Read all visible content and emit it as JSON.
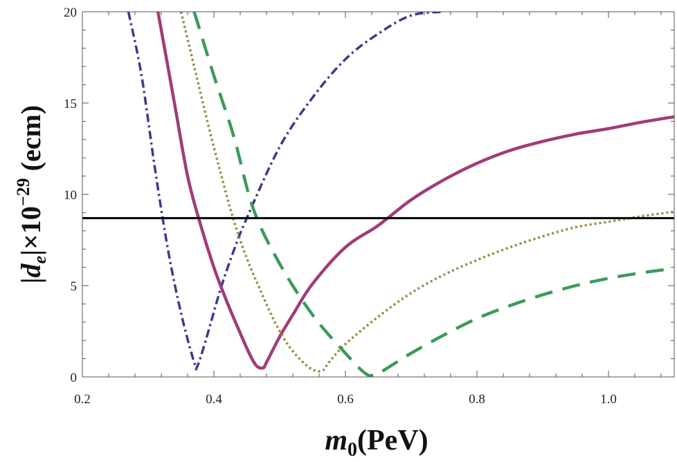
{
  "chart_data": {
    "type": "line",
    "title": "",
    "xlabel": "m0(PeV)",
    "xlabel_parts": {
      "var": "m",
      "sub": "0",
      "unit": "(PeV)"
    },
    "ylabel": "|de|×10−29 (ecm)",
    "ylabel_parts": {
      "bar_open": "|",
      "var": "d",
      "sub": "e",
      "bar_close": "|×10",
      "exp": "−29",
      "unit": " (ecm)"
    },
    "xlim": [
      0.2,
      1.1
    ],
    "ylim": [
      0,
      20
    ],
    "xticks": [
      0.2,
      0.4,
      0.6,
      0.8,
      1.0
    ],
    "xtick_labels": [
      "0.2",
      "0.4",
      "0.6",
      "0.8",
      "1.0"
    ],
    "yticks": [
      0,
      5,
      10,
      15,
      20
    ],
    "ytick_labels": [
      "0",
      "5",
      "10",
      "15",
      "20"
    ],
    "grid": false,
    "reference_line": {
      "y": 8.7,
      "color": "#000000"
    },
    "series": [
      {
        "name": "dot-dashed",
        "color": "#3a3a8c",
        "dash": "dotdash",
        "points": [
          [
            0.27,
            20
          ],
          [
            0.29,
            16.5
          ],
          [
            0.31,
            11.5
          ],
          [
            0.33,
            7
          ],
          [
            0.35,
            3.5
          ],
          [
            0.37,
            0.8
          ],
          [
            0.375,
            0.6
          ],
          [
            0.39,
            2.3
          ],
          [
            0.41,
            4.8
          ],
          [
            0.43,
            6.9
          ],
          [
            0.45,
            8.7
          ],
          [
            0.5,
            12.6
          ],
          [
            0.55,
            15.3
          ],
          [
            0.6,
            17.4
          ],
          [
            0.65,
            18.8
          ],
          [
            0.7,
            19.8
          ],
          [
            0.75,
            20
          ]
        ]
      },
      {
        "name": "solid",
        "color": "#a03c78",
        "dash": "solid",
        "points": [
          [
            0.315,
            20
          ],
          [
            0.34,
            15
          ],
          [
            0.36,
            11
          ],
          [
            0.38,
            8.3
          ],
          [
            0.4,
            6
          ],
          [
            0.42,
            4.1
          ],
          [
            0.44,
            2.4
          ],
          [
            0.455,
            1.2
          ],
          [
            0.465,
            0.6
          ],
          [
            0.475,
            0.5
          ],
          [
            0.48,
            0.8
          ],
          [
            0.5,
            2.2
          ],
          [
            0.52,
            3.4
          ],
          [
            0.55,
            5.1
          ],
          [
            0.6,
            7.1
          ],
          [
            0.65,
            8.3
          ],
          [
            0.7,
            9.7
          ],
          [
            0.75,
            10.8
          ],
          [
            0.8,
            11.7
          ],
          [
            0.85,
            12.4
          ],
          [
            0.9,
            12.9
          ],
          [
            0.95,
            13.3
          ],
          [
            1.0,
            13.6
          ],
          [
            1.05,
            13.95
          ],
          [
            1.1,
            14.25
          ]
        ]
      },
      {
        "name": "dotted",
        "color": "#9a8a3c",
        "dash": "dotted",
        "points": [
          [
            0.35,
            20
          ],
          [
            0.37,
            17
          ],
          [
            0.39,
            14
          ],
          [
            0.41,
            11.2
          ],
          [
            0.43,
            8.6
          ],
          [
            0.45,
            6.5
          ],
          [
            0.47,
            4.8
          ],
          [
            0.49,
            3.2
          ],
          [
            0.51,
            1.9
          ],
          [
            0.53,
            1.0
          ],
          [
            0.55,
            0.4
          ],
          [
            0.565,
            0.35
          ],
          [
            0.575,
            0.8
          ],
          [
            0.6,
            1.8
          ],
          [
            0.65,
            3.3
          ],
          [
            0.7,
            4.6
          ],
          [
            0.75,
            5.6
          ],
          [
            0.8,
            6.4
          ],
          [
            0.85,
            7.1
          ],
          [
            0.9,
            7.7
          ],
          [
            0.95,
            8.2
          ],
          [
            1.0,
            8.5
          ],
          [
            1.05,
            8.8
          ],
          [
            1.1,
            9.05
          ]
        ]
      },
      {
        "name": "dashed",
        "color": "#3c9a5a",
        "dash": "dashed",
        "points": [
          [
            0.37,
            20
          ],
          [
            0.4,
            16.5
          ],
          [
            0.43,
            13.2
          ],
          [
            0.46,
            9.2
          ],
          [
            0.5,
            6.2
          ],
          [
            0.55,
            3.4
          ],
          [
            0.6,
            1.3
          ],
          [
            0.63,
            0.2
          ],
          [
            0.645,
            0.1
          ],
          [
            0.66,
            0.4
          ],
          [
            0.7,
            1.3
          ],
          [
            0.75,
            2.3
          ],
          [
            0.8,
            3.2
          ],
          [
            0.85,
            3.9
          ],
          [
            0.9,
            4.5
          ],
          [
            0.95,
            5.0
          ],
          [
            1.0,
            5.4
          ],
          [
            1.05,
            5.7
          ],
          [
            1.1,
            5.95
          ]
        ]
      }
    ]
  }
}
